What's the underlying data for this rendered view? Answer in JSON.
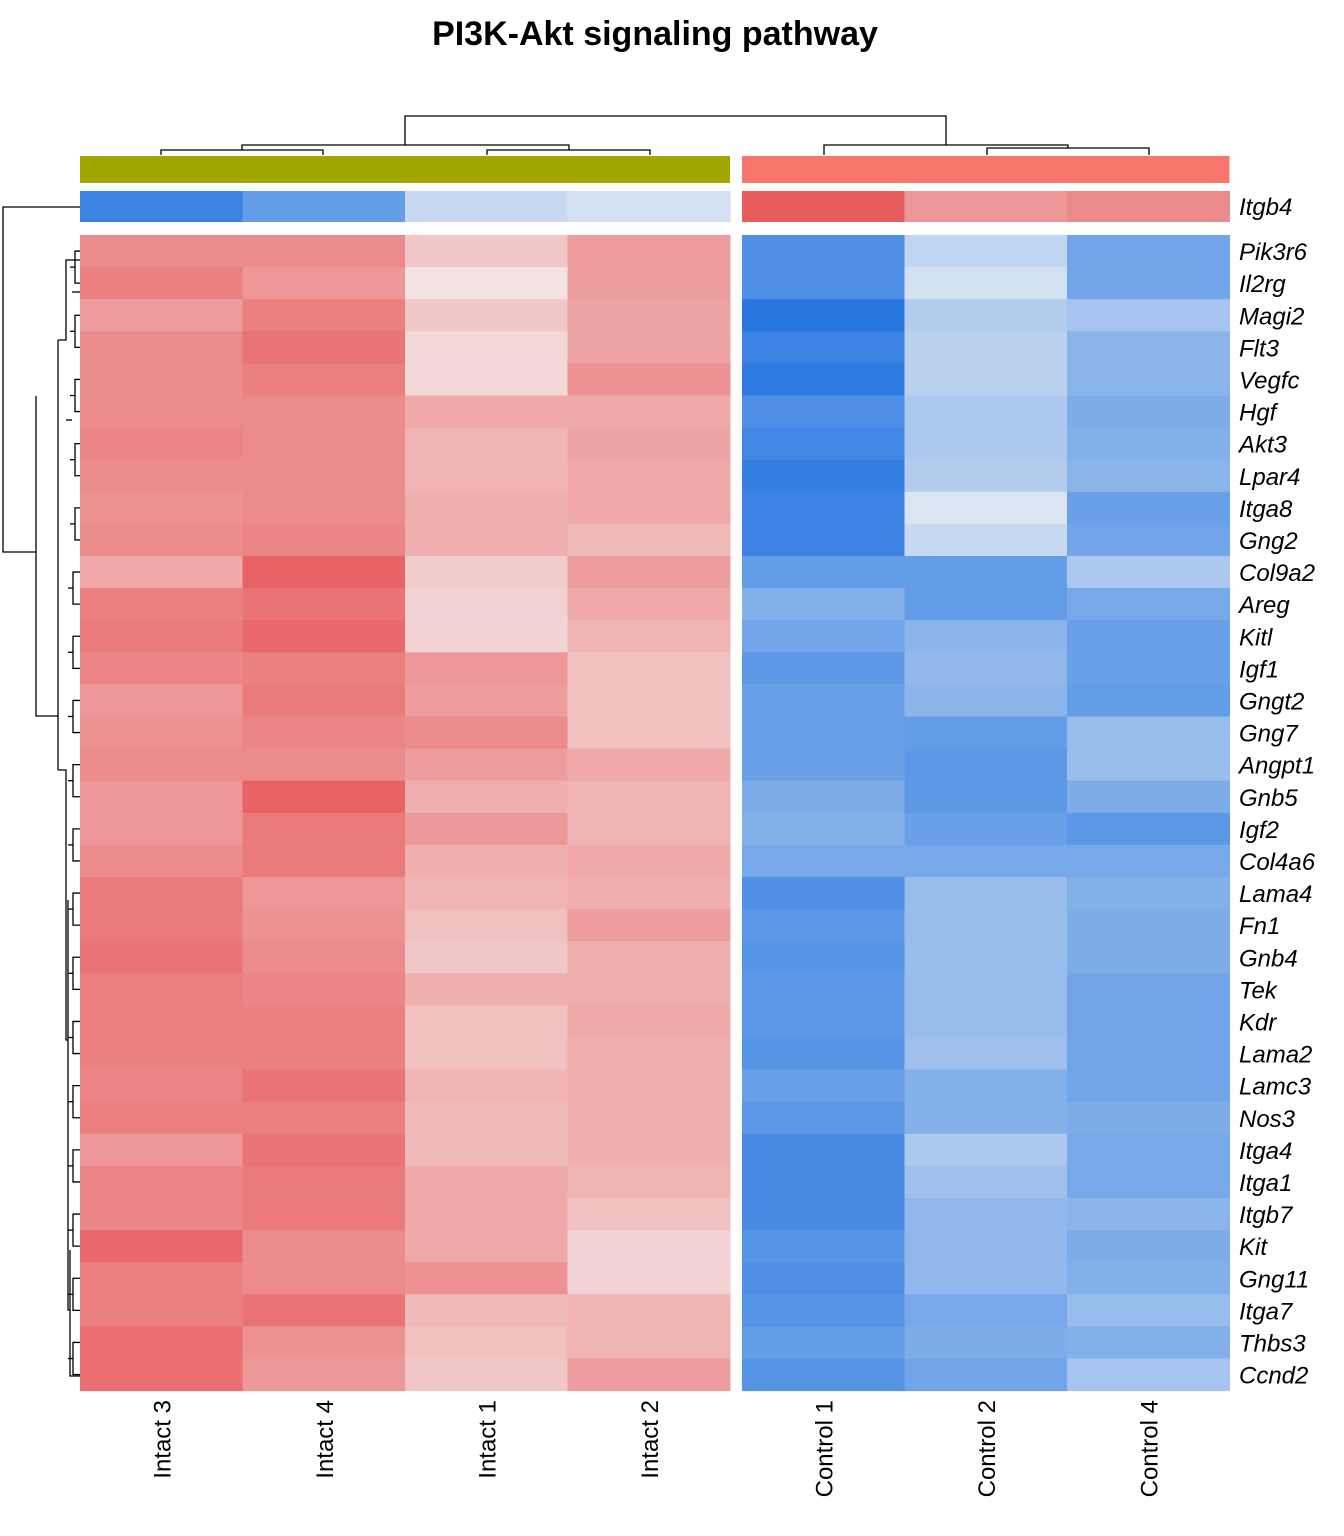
{
  "chart_data": {
    "type": "heatmap",
    "title": "PI3K-Akt signaling pathway",
    "columns": [
      "Intact 3",
      "Intact 4",
      "Intact 1",
      "Intact 2",
      "Control 1",
      "Control 2",
      "Control 4"
    ],
    "column_groups": [
      {
        "name": "Intact",
        "color": "#a3a500",
        "count": 4
      },
      {
        "name": "Control",
        "color": "#f8766d",
        "count": 3
      }
    ],
    "annotation_row": {
      "label": "Itgb4",
      "values": [
        -1.4,
        -1.1,
        -0.35,
        -0.25,
        1.3,
        0.8,
        0.9
      ]
    },
    "rows": [
      "Pik3r6",
      "Il2rg",
      "Magi2",
      "Flt3",
      "Vegfc",
      "Hgf",
      "Akt3",
      "Lpar4",
      "Itga8",
      "Gng2",
      "Col9a2",
      "Areg",
      "Kitl",
      "Igf1",
      "Gngt2",
      "Gng7",
      "Angpt1",
      "Gnb5",
      "Igf2",
      "Col4a6",
      "Lama4",
      "Fn1",
      "Gnb4",
      "Tek",
      "Kdr",
      "Lama2",
      "Lamc3",
      "Nos3",
      "Itga4",
      "Itga1",
      "Itgb7",
      "Kit",
      "Gng11",
      "Itga7",
      "Thbs3",
      "Ccnd2"
    ],
    "values": [
      [
        0.9,
        0.9,
        0.4,
        0.75,
        -1.25,
        -0.4,
        -1.0
      ],
      [
        1.0,
        0.8,
        0.15,
        0.75,
        -1.25,
        -0.25,
        -1.0
      ],
      [
        0.75,
        1.0,
        0.4,
        0.7,
        -1.55,
        -0.5,
        -0.6
      ],
      [
        0.9,
        1.1,
        0.25,
        0.7,
        -1.4,
        -0.45,
        -0.8
      ],
      [
        0.9,
        1.0,
        0.25,
        0.85,
        -1.5,
        -0.45,
        -0.8
      ],
      [
        0.9,
        0.9,
        0.65,
        0.65,
        -1.25,
        -0.55,
        -0.9
      ],
      [
        0.95,
        0.9,
        0.55,
        0.7,
        -1.35,
        -0.55,
        -0.85
      ],
      [
        0.9,
        0.9,
        0.55,
        0.65,
        -1.45,
        -0.5,
        -0.8
      ],
      [
        0.85,
        0.9,
        0.6,
        0.65,
        -1.4,
        -0.2,
        -1.05
      ],
      [
        0.9,
        0.95,
        0.6,
        0.5,
        -1.4,
        -0.35,
        -1.0
      ],
      [
        0.65,
        1.25,
        0.35,
        0.75,
        -1.1,
        -1.1,
        -0.55
      ],
      [
        1.0,
        1.1,
        0.3,
        0.65,
        -0.85,
        -1.1,
        -0.95
      ],
      [
        1.05,
        1.2,
        0.3,
        0.55,
        -1.0,
        -0.8,
        -1.05
      ],
      [
        0.95,
        1.0,
        0.8,
        0.45,
        -1.15,
        -0.75,
        -1.05
      ],
      [
        0.8,
        1.05,
        0.75,
        0.45,
        -1.05,
        -0.8,
        -1.1
      ],
      [
        0.85,
        0.95,
        0.9,
        0.45,
        -1.05,
        -1.1,
        -0.7
      ],
      [
        0.9,
        0.9,
        0.75,
        0.65,
        -1.05,
        -1.15,
        -0.7
      ],
      [
        0.8,
        1.25,
        0.6,
        0.55,
        -0.9,
        -1.15,
        -0.9
      ],
      [
        0.8,
        1.05,
        0.8,
        0.55,
        -0.85,
        -1.05,
        -1.15
      ],
      [
        0.9,
        1.05,
        0.6,
        0.65,
        -0.95,
        -0.95,
        -0.95
      ],
      [
        1.05,
        0.8,
        0.55,
        0.6,
        -1.25,
        -0.7,
        -0.85
      ],
      [
        1.05,
        0.85,
        0.45,
        0.75,
        -1.15,
        -0.7,
        -0.9
      ],
      [
        1.1,
        0.9,
        0.4,
        0.6,
        -1.2,
        -0.7,
        -0.9
      ],
      [
        1.0,
        0.95,
        0.6,
        0.6,
        -1.15,
        -0.7,
        -1.0
      ],
      [
        1.0,
        1.0,
        0.45,
        0.65,
        -1.15,
        -0.7,
        -1.0
      ],
      [
        1.0,
        1.0,
        0.45,
        0.6,
        -1.2,
        -0.65,
        -1.0
      ],
      [
        0.95,
        1.1,
        0.55,
        0.6,
        -1.05,
        -0.85,
        -1.0
      ],
      [
        1.0,
        1.0,
        0.5,
        0.6,
        -1.15,
        -0.85,
        -0.9
      ],
      [
        0.8,
        1.1,
        0.5,
        0.6,
        -1.3,
        -0.55,
        -0.95
      ],
      [
        0.95,
        1.05,
        0.65,
        0.55,
        -1.3,
        -0.65,
        -0.95
      ],
      [
        0.95,
        1.05,
        0.65,
        0.45,
        -1.3,
        -0.75,
        -0.8
      ],
      [
        1.2,
        0.9,
        0.65,
        0.3,
        -1.2,
        -0.75,
        -0.9
      ],
      [
        1.0,
        0.9,
        0.85,
        0.3,
        -1.25,
        -0.75,
        -0.85
      ],
      [
        1.0,
        1.1,
        0.5,
        0.55,
        -1.2,
        -0.95,
        -0.7
      ],
      [
        1.15,
        0.85,
        0.45,
        0.55,
        -1.1,
        -0.9,
        -0.85
      ],
      [
        1.15,
        0.8,
        0.4,
        0.75,
        -1.2,
        -1.0,
        -0.6
      ]
    ],
    "color_scale": {
      "low": "#2173e0",
      "mid": "#f5f5f5",
      "high": "#e5393b",
      "range": [
        -1.6,
        1.6
      ]
    },
    "legend": "none"
  }
}
